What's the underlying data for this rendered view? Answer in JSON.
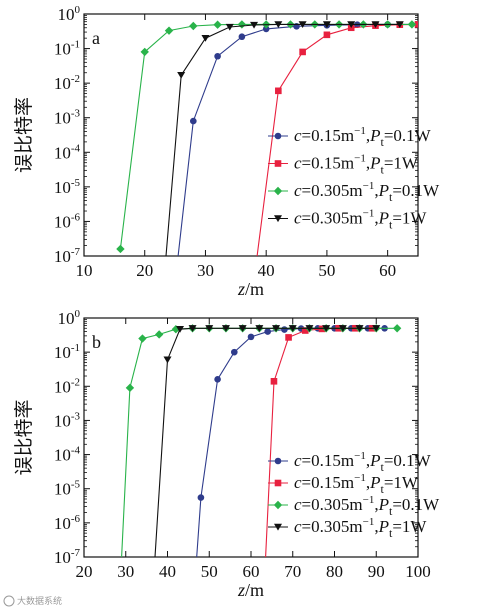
{
  "colors": {
    "blue": "#2f3c8c",
    "red": "#e8213f",
    "green": "#29b34a",
    "black": "#111111"
  },
  "watermark": "大数据系统",
  "chart_data": [
    {
      "type": "line",
      "panel_label": "a",
      "xlabel_italic": "z",
      "xlabel_unit": "/m",
      "ylabel": "误比特率",
      "xlim": [
        10,
        65
      ],
      "xticks": [
        10,
        20,
        30,
        40,
        50,
        60
      ],
      "ylim": [
        1e-07,
        1
      ],
      "yscale": "log",
      "ytick_exponents": [
        0,
        -1,
        -2,
        -3,
        -4,
        -5,
        -6,
        -7
      ],
      "legend_position": "center-right",
      "series": [
        {
          "key": "blue",
          "marker": "circle",
          "label_c": "0.15",
          "label_p": "0.1",
          "x": [
            25.5,
            28,
            32,
            36,
            40,
            45,
            50,
            55,
            60,
            65
          ],
          "y": [
            1e-07,
            0.0008,
            0.06,
            0.22,
            0.37,
            0.44,
            0.47,
            0.49,
            0.5,
            0.5
          ]
        },
        {
          "key": "red",
          "marker": "square",
          "label_c": "0.15",
          "label_p": "1",
          "x": [
            38.5,
            42,
            46,
            50,
            54,
            58,
            62,
            65
          ],
          "y": [
            1e-07,
            0.006,
            0.08,
            0.25,
            0.4,
            0.46,
            0.49,
            0.5
          ]
        },
        {
          "key": "green",
          "marker": "diamond",
          "label_c": "0.305",
          "label_p": "0.1",
          "x": [
            16,
            20,
            24,
            28,
            32,
            36,
            40,
            44,
            48,
            52,
            56,
            60,
            64
          ],
          "y": [
            1.6e-07,
            0.08,
            0.33,
            0.45,
            0.49,
            0.5,
            0.5,
            0.5,
            0.5,
            0.5,
            0.5,
            0.5,
            0.5
          ]
        },
        {
          "key": "black",
          "marker": "triangle",
          "label_c": "0.305",
          "label_p": "1",
          "x": [
            23.5,
            26,
            30,
            34,
            38,
            42,
            46,
            50,
            54,
            58,
            62
          ],
          "y": [
            1e-07,
            0.017,
            0.2,
            0.42,
            0.48,
            0.5,
            0.5,
            0.5,
            0.5,
            0.5,
            0.5
          ]
        }
      ]
    },
    {
      "type": "line",
      "panel_label": "b",
      "xlabel_italic": "z",
      "xlabel_unit": "/m",
      "ylabel": "误比特率",
      "xlim": [
        20,
        100
      ],
      "xticks": [
        20,
        30,
        40,
        50,
        60,
        70,
        80,
        90,
        100
      ],
      "ylim": [
        1e-07,
        1
      ],
      "yscale": "log",
      "ytick_exponents": [
        0,
        -1,
        -2,
        -3,
        -4,
        -5,
        -6,
        -7
      ],
      "legend_position": "bottom-right",
      "series": [
        {
          "key": "blue",
          "marker": "circle",
          "label_c": "0.15",
          "label_p": "0.1",
          "x": [
            47,
            48,
            52,
            56,
            60,
            64,
            68,
            72,
            76,
            80,
            84,
            88,
            92
          ],
          "y": [
            1e-07,
            5.5e-06,
            0.016,
            0.1,
            0.28,
            0.4,
            0.46,
            0.49,
            0.5,
            0.5,
            0.5,
            0.5,
            0.5
          ]
        },
        {
          "key": "red",
          "marker": "square",
          "label_c": "0.15",
          "label_p": "1",
          "x": [
            63.5,
            65.5,
            69,
            73,
            77,
            81,
            85,
            89
          ],
          "y": [
            1e-07,
            0.014,
            0.27,
            0.43,
            0.48,
            0.5,
            0.5,
            0.5
          ]
        },
        {
          "key": "green",
          "marker": "diamond",
          "label_c": "0.305",
          "label_p": "0.1",
          "x": [
            29,
            31,
            34,
            38,
            42,
            46,
            50,
            54,
            58,
            62,
            66,
            70,
            74,
            78,
            82,
            86,
            90,
            95
          ],
          "y": [
            1e-07,
            0.009,
            0.25,
            0.33,
            0.47,
            0.5,
            0.5,
            0.5,
            0.5,
            0.5,
            0.5,
            0.5,
            0.5,
            0.5,
            0.5,
            0.5,
            0.5,
            0.5
          ]
        },
        {
          "key": "black",
          "marker": "triangle",
          "label_c": "0.305",
          "label_p": "1",
          "x": [
            37,
            40,
            43,
            46,
            50,
            54,
            58,
            62,
            66,
            70,
            74,
            78,
            82,
            86,
            90
          ],
          "y": [
            1e-07,
            0.06,
            0.47,
            0.5,
            0.5,
            0.5,
            0.5,
            0.5,
            0.5,
            0.5,
            0.5,
            0.5,
            0.5,
            0.5,
            0.5
          ]
        }
      ]
    }
  ]
}
